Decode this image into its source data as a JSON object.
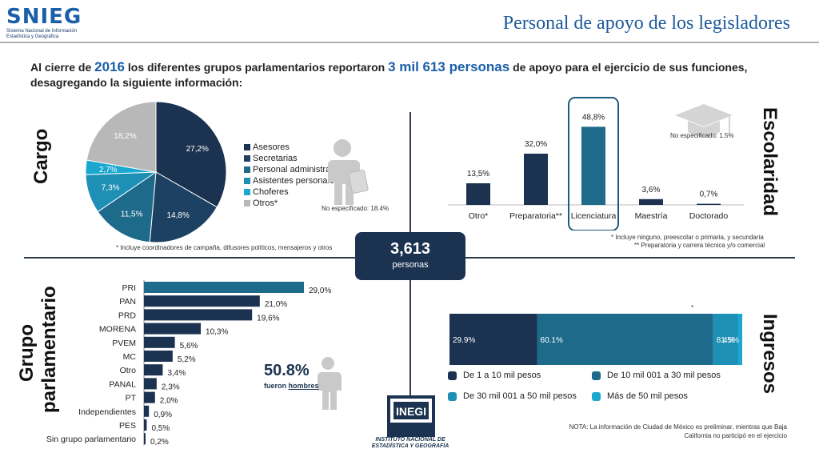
{
  "header": {
    "logo_text": "SNIEG",
    "logo_subtitle": "Sistema Nacional de Información Estadística y Geográfica",
    "title": "Personal de apoyo de los legisladores"
  },
  "intro": {
    "part1": "Al cierre de ",
    "year": "2016",
    "part2": " los diferentes grupos parlamentarios reportaron ",
    "count": "3 mil 613 personas",
    "part3": " de apoyo para el ejercicio de sus funciones, desagregando la siguiente información:"
  },
  "section_labels": {
    "cargo": "Cargo",
    "escolaridad": "Escolaridad",
    "grupo": "Grupo parlamentario",
    "ingresos": "Ingresos"
  },
  "total": {
    "number": "3,613",
    "unit": "personas"
  },
  "notes": {
    "cargo_footnote": "* Incluye coordinadores de campaña, difusores políticos, mensajeros y otros",
    "cargo_not_specified": "No especificado: 18.4%",
    "edu_footnote1": "* Incluye ninguno, preescolar o primaria, y secundaria",
    "edu_footnote2": "** Preparatoria y carrera técnica y/o comercial",
    "edu_not_specified": "No especificado: 1.5%",
    "income_star": "*",
    "nota": "NOTA: La información de Ciudad de México es preliminar, mientras que Baja California no participó en el ejercicio",
    "men_pct": "50.8%",
    "men_caption_prefix": "fueron ",
    "men_caption_word": "hombres"
  },
  "inegi": {
    "logo_text": "INEGI",
    "name": "INSTITUTO NACIONAL DE ESTADÍSTICA Y GEOGRAFÍA"
  },
  "colors": {
    "navy": "#1b3350",
    "dark_blue": "#1d4163",
    "teal": "#1d6a8a",
    "light_teal": "#1e8fb5",
    "cyan": "#1aa8cf",
    "gray": "#b8b8b8"
  },
  "chart_data": [
    {
      "id": "cargo",
      "type": "pie",
      "categories": [
        "Asesores",
        "Secretarias",
        "Personal administrativo",
        "Asistentes personales",
        "Choferes",
        "Otros*"
      ],
      "values": [
        27.2,
        14.8,
        11.5,
        7.3,
        2.7,
        18.2
      ],
      "labels": [
        "27,2%",
        "14,8%",
        "11,5%",
        "7,3%",
        "2,7%",
        "18,2%"
      ],
      "colors": [
        "#1b3350",
        "#1d4163",
        "#1d6a8a",
        "#1e8fb5",
        "#1aa8cf",
        "#b8b8b8"
      ],
      "legend_position": "right"
    },
    {
      "id": "escolaridad",
      "type": "bar",
      "categories": [
        "Otro*",
        "Preparatoria**",
        "Licenciatura",
        "Maestría",
        "Doctorado"
      ],
      "values": [
        13.5,
        32.0,
        48.8,
        3.6,
        0.7
      ],
      "labels": [
        "13,5%",
        "32,0%",
        "48,8%",
        "3,6%",
        "0,7%"
      ],
      "colors": [
        "#1b3350",
        "#1b3350",
        "#1d6a8a",
        "#1b3350",
        "#1b3350"
      ],
      "highlight": "Licenciatura"
    },
    {
      "id": "grupo",
      "type": "bar",
      "orientation": "horizontal",
      "categories": [
        "PRI",
        "PAN",
        "PRD",
        "MORENA",
        "PVEM",
        "MC",
        "Otro",
        "PANAL",
        "PT",
        "Independientes",
        "PES",
        "Sin grupo parlamentario"
      ],
      "values": [
        29.0,
        21.0,
        19.6,
        10.3,
        5.6,
        5.2,
        3.4,
        2.3,
        2.0,
        0.9,
        0.5,
        0.2
      ],
      "labels": [
        "29,0%",
        "21,0%",
        "19,6%",
        "10,3%",
        "5,6%",
        "5,2%",
        "3,4%",
        "2,3%",
        "2,0%",
        "0,9%",
        "0,5%",
        "0,2%"
      ],
      "highlight_color": "#1d6a8a",
      "bar_color": "#1b3350"
    },
    {
      "id": "ingresos",
      "type": "bar",
      "orientation": "horizontal-stacked",
      "series": [
        {
          "name": "De 1 a 10 mil pesos",
          "values": [
            29.9
          ],
          "label": "29.9%",
          "color": "#1b3350"
        },
        {
          "name": "De 10 mil 001 a 30 mil pesos",
          "values": [
            60.1
          ],
          "label": "60.1%",
          "color": "#1d6a8a"
        },
        {
          "name": "De 30 mil 001 a 50 mil pesos",
          "values": [
            8.4
          ],
          "label": "8.4%",
          "color": "#1e8fb5"
        },
        {
          "name": "Más de 50 mil pesos",
          "values": [
            1.5
          ],
          "label": "1.5%",
          "color": "#1aa8cf"
        }
      ]
    }
  ]
}
